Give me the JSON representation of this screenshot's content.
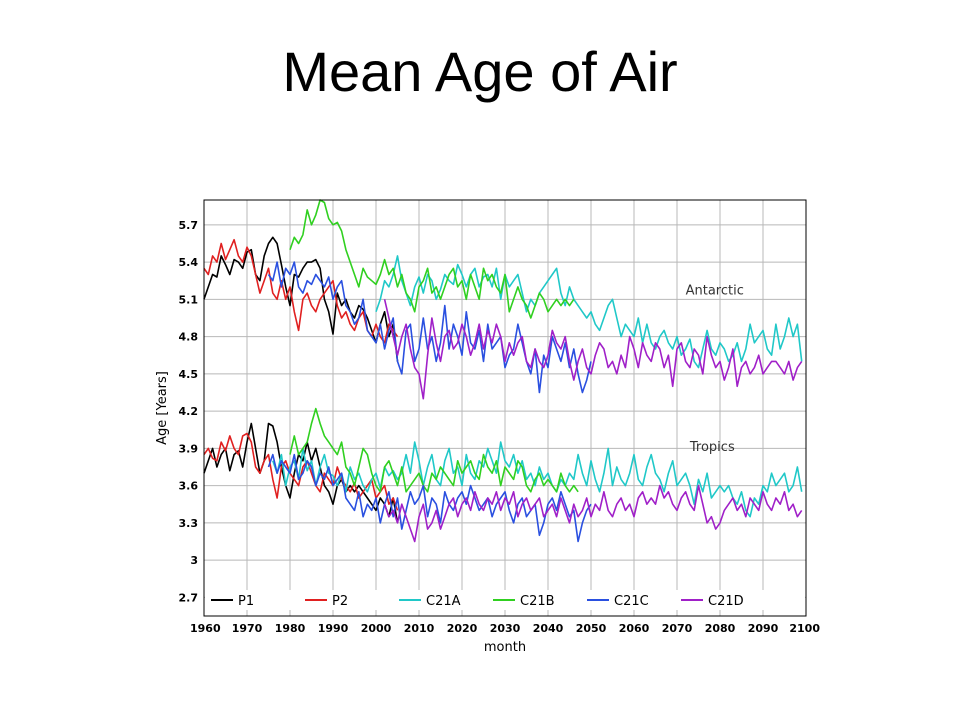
{
  "slide": {
    "title": "Mean Age of Air"
  },
  "chart_data": {
    "type": "line",
    "title": "",
    "xlabel": "month",
    "ylabel": "Age  [Years]",
    "xlim": [
      1960,
      2100
    ],
    "ylim": [
      2.55,
      5.9
    ],
    "x_ticks": [
      "1960",
      "1970",
      "1980",
      "1990",
      "2000",
      "2010",
      "2020",
      "2030",
      "2040",
      "2050",
      "2060",
      "2070",
      "2080",
      "2090",
      "2100"
    ],
    "y_ticks": [
      "2.7",
      "3",
      "3.3",
      "3.6",
      "3.9",
      "4.2",
      "4.5",
      "4.8",
      "5.1",
      "5.4",
      "5.7"
    ],
    "grid": true,
    "legend_position": "bottom",
    "annotations": [
      {
        "text": "Antarctic",
        "x": 2072,
        "y": 5.14
      },
      {
        "text": "Tropics",
        "x": 2073,
        "y": 3.88
      }
    ],
    "series": [
      {
        "name": "P1",
        "color": "#000000",
        "group": "Antarctic",
        "x_start": 1960,
        "x_step": 1,
        "values": [
          5.1,
          5.2,
          5.3,
          5.28,
          5.45,
          5.38,
          5.3,
          5.42,
          5.4,
          5.35,
          5.48,
          5.5,
          5.3,
          5.25,
          5.45,
          5.55,
          5.6,
          5.55,
          5.38,
          5.2,
          5.05,
          5.3,
          5.28,
          5.35,
          5.4,
          5.4,
          5.42,
          5.35,
          5.1,
          5.0,
          4.82,
          5.15,
          5.05,
          5.1,
          5.0,
          4.95,
          5.05,
          5.02,
          4.95,
          4.85,
          4.75,
          4.9,
          5.0,
          4.8,
          4.9,
          4.6
        ]
      },
      {
        "name": "P2",
        "color": "#e02020",
        "group": "Antarctic",
        "x_start": 1960,
        "x_step": 1,
        "values": [
          5.35,
          5.3,
          5.45,
          5.4,
          5.55,
          5.42,
          5.5,
          5.58,
          5.45,
          5.4,
          5.52,
          5.45,
          5.3,
          5.15,
          5.25,
          5.35,
          5.15,
          5.1,
          5.25,
          5.1,
          5.2,
          5.0,
          4.85,
          5.1,
          5.15,
          5.05,
          5.0,
          5.1,
          5.15,
          5.2,
          5.25,
          5.05,
          4.95,
          5.0,
          4.9,
          4.85,
          4.95,
          5.0,
          4.85,
          4.8,
          4.9,
          4.8,
          4.75,
          4.9,
          4.85,
          4.8
        ]
      },
      {
        "name": "C21A",
        "color": "#20c8c8",
        "group": "Antarctic",
        "x_start": 2000,
        "x_step": 1,
        "values": [
          5.0,
          5.1,
          5.25,
          5.2,
          5.3,
          5.45,
          5.25,
          5.15,
          5.05,
          5.2,
          5.28,
          5.15,
          5.3,
          5.25,
          5.1,
          5.18,
          5.3,
          5.25,
          5.22,
          5.38,
          5.3,
          5.2,
          5.3,
          5.35,
          5.2,
          5.28,
          5.3,
          5.2,
          5.35,
          5.1,
          5.3,
          5.2,
          5.25,
          5.3,
          5.15,
          5.0,
          5.1,
          5.05,
          5.15,
          5.2,
          5.25,
          5.3,
          5.35,
          5.15,
          5.05,
          5.2,
          5.1,
          5.05,
          5.0,
          4.95,
          5.0,
          4.9,
          4.85,
          4.95,
          5.05,
          5.1,
          4.95,
          4.8,
          4.9,
          4.85,
          4.8,
          4.95,
          4.75,
          4.9,
          4.75,
          4.7,
          4.8,
          4.85,
          4.75,
          4.7,
          4.8,
          4.65,
          4.7,
          4.78,
          4.6,
          4.55,
          4.7,
          4.85,
          4.7,
          4.65,
          4.75,
          4.7,
          4.6,
          4.65,
          4.75,
          4.6,
          4.7,
          4.9,
          4.75,
          4.8,
          4.85,
          4.7,
          4.65,
          4.9,
          4.7,
          4.8,
          4.95,
          4.8,
          4.9,
          4.6
        ]
      },
      {
        "name": "C21B",
        "color": "#30d020",
        "group": "Antarctic",
        "x_start": 1980,
        "x_step": 1,
        "values": [
          5.5,
          5.6,
          5.55,
          5.62,
          5.82,
          5.7,
          5.78,
          5.9,
          5.88,
          5.75,
          5.7,
          5.72,
          5.65,
          5.5,
          5.4,
          5.3,
          5.2,
          5.35,
          5.28,
          5.25,
          5.22,
          5.3,
          5.42,
          5.3,
          5.35,
          5.2,
          5.3,
          5.15,
          5.1,
          5.0,
          5.2,
          5.25,
          5.35,
          5.15,
          5.2,
          5.1,
          5.2,
          5.3,
          5.35,
          5.2,
          5.25,
          5.1,
          5.3,
          5.2,
          5.1,
          5.35,
          5.25,
          5.3,
          5.2,
          5.15,
          5.3,
          5.0,
          5.1,
          5.2,
          5.1,
          5.05,
          4.95,
          5.05,
          5.15,
          5.1,
          5.0,
          5.05,
          5.1,
          5.05,
          5.1,
          5.05,
          5.1
        ]
      },
      {
        "name": "C21C",
        "color": "#2a50e0",
        "group": "Antarctic",
        "x_start": 1975,
        "x_step": 1,
        "values": [
          5.3,
          5.25,
          5.4,
          5.2,
          5.35,
          5.3,
          5.4,
          5.2,
          5.15,
          5.25,
          5.22,
          5.3,
          5.25,
          5.2,
          5.28,
          5.1,
          5.2,
          5.25,
          5.05,
          5.0,
          4.9,
          4.95,
          5.1,
          4.85,
          4.8,
          4.75,
          4.9,
          4.7,
          4.85,
          4.95,
          4.6,
          4.5,
          4.85,
          4.9,
          4.6,
          4.7,
          4.95,
          4.7,
          4.8,
          4.6,
          4.75,
          5.05,
          4.7,
          4.9,
          4.8,
          4.65,
          5.0,
          4.75,
          4.7,
          4.85,
          4.6,
          4.9,
          4.7,
          4.75,
          4.8,
          4.55,
          4.65,
          4.7,
          4.9,
          4.75,
          4.6,
          4.5,
          4.7,
          4.35,
          4.65,
          4.55,
          4.8,
          4.7,
          4.6,
          4.75,
          4.55,
          4.7,
          4.5,
          4.35,
          4.45,
          4.6
        ]
      },
      {
        "name": "C21D",
        "color": "#a020c8",
        "group": "Antarctic",
        "x_start": 2002,
        "x_step": 1,
        "values": [
          5.1,
          4.95,
          4.8,
          4.65,
          4.8,
          4.9,
          4.7,
          4.55,
          4.5,
          4.3,
          4.65,
          4.95,
          4.75,
          4.6,
          4.8,
          4.85,
          4.7,
          4.75,
          4.9,
          4.8,
          4.65,
          4.75,
          4.9,
          4.7,
          4.85,
          4.75,
          4.9,
          4.8,
          4.6,
          4.75,
          4.65,
          4.75,
          4.8,
          4.6,
          4.55,
          4.7,
          4.6,
          4.55,
          4.65,
          4.85,
          4.75,
          4.7,
          4.8,
          4.6,
          4.45,
          4.6,
          4.7,
          4.55,
          4.5,
          4.65,
          4.75,
          4.7,
          4.55,
          4.6,
          4.5,
          4.65,
          4.55,
          4.8,
          4.7,
          4.55,
          4.75,
          4.65,
          4.6,
          4.75,
          4.7,
          4.55,
          4.65,
          4.4,
          4.7,
          4.75,
          4.6,
          4.55,
          4.7,
          4.65,
          4.5,
          4.8,
          4.65,
          4.55,
          4.6,
          4.45,
          4.55,
          4.7,
          4.4,
          4.55,
          4.6,
          4.5,
          4.55,
          4.65,
          4.5,
          4.55,
          4.6,
          4.6,
          4.55,
          4.5,
          4.6,
          4.45,
          4.55,
          4.6
        ]
      },
      {
        "name": "P1",
        "color": "#000000",
        "group": "Tropics",
        "x_start": 1960,
        "x_step": 1,
        "values": [
          3.7,
          3.8,
          3.9,
          3.75,
          3.85,
          3.9,
          3.72,
          3.85,
          3.88,
          3.75,
          3.95,
          4.1,
          3.9,
          3.7,
          3.8,
          4.1,
          4.08,
          3.95,
          3.75,
          3.6,
          3.5,
          3.7,
          3.85,
          3.8,
          3.95,
          3.8,
          3.9,
          3.75,
          3.6,
          3.55,
          3.45,
          3.6,
          3.65,
          3.55,
          3.6,
          3.55,
          3.6,
          3.55,
          3.5,
          3.45,
          3.4,
          3.5,
          3.45,
          3.35,
          3.5,
          3.3
        ]
      },
      {
        "name": "P2",
        "color": "#e02020",
        "group": "Tropics",
        "x_start": 1960,
        "x_step": 1,
        "values": [
          3.85,
          3.9,
          3.82,
          3.8,
          3.95,
          3.88,
          4.0,
          3.9,
          3.85,
          4.0,
          4.02,
          3.95,
          3.75,
          3.7,
          3.8,
          3.85,
          3.65,
          3.5,
          3.75,
          3.8,
          3.7,
          3.65,
          3.6,
          3.75,
          3.8,
          3.7,
          3.6,
          3.55,
          3.7,
          3.65,
          3.6,
          3.75,
          3.65,
          3.6,
          3.55,
          3.62,
          3.5,
          3.55,
          3.6,
          3.65,
          3.5,
          3.55,
          3.6,
          3.45,
          3.5,
          3.4
        ]
      },
      {
        "name": "C21A",
        "color": "#20c8c8",
        "group": "Tropics",
        "x_start": 1976,
        "x_step": 1,
        "values": [
          3.8,
          3.7,
          3.85,
          3.6,
          3.75,
          3.8,
          3.65,
          3.9,
          3.72,
          3.8,
          3.6,
          3.75,
          3.85,
          3.7,
          3.68,
          3.6,
          3.7,
          3.55,
          3.75,
          3.65,
          3.7,
          3.6,
          3.55,
          3.65,
          3.7,
          3.58,
          3.75,
          3.68,
          3.72,
          3.65,
          3.7,
          3.85,
          3.7,
          3.95,
          3.8,
          3.6,
          3.75,
          3.85,
          3.65,
          3.6,
          3.8,
          3.9,
          3.7,
          3.75,
          3.6,
          3.85,
          3.7,
          3.65,
          3.8,
          3.75,
          3.9,
          3.8,
          3.7,
          3.95,
          3.8,
          3.75,
          3.85,
          3.7,
          3.8,
          3.65,
          3.7,
          3.6,
          3.75,
          3.65,
          3.7,
          3.6,
          3.55,
          3.65,
          3.6,
          3.7,
          3.65,
          3.85,
          3.7,
          3.6,
          3.8,
          3.65,
          3.55,
          3.7,
          3.9,
          3.6,
          3.75,
          3.65,
          3.6,
          3.7,
          3.85,
          3.65,
          3.6,
          3.75,
          3.85,
          3.7,
          3.65,
          3.55,
          3.7,
          3.8,
          3.6,
          3.65,
          3.7,
          3.6,
          3.45,
          3.65,
          3.55,
          3.7,
          3.5,
          3.55,
          3.6,
          3.55,
          3.6,
          3.5,
          3.45,
          3.55,
          3.4,
          3.35,
          3.5,
          3.45,
          3.6,
          3.55,
          3.7,
          3.6,
          3.65,
          3.7,
          3.55,
          3.6,
          3.75,
          3.55
        ]
      },
      {
        "name": "C21B",
        "color": "#30d020",
        "group": "Tropics",
        "x_start": 1980,
        "x_step": 1,
        "values": [
          3.85,
          4.0,
          3.85,
          3.9,
          3.95,
          4.1,
          4.22,
          4.1,
          4.0,
          3.95,
          3.9,
          3.85,
          3.95,
          3.75,
          3.7,
          3.6,
          3.75,
          3.9,
          3.85,
          3.7,
          3.6,
          3.55,
          3.75,
          3.8,
          3.7,
          3.6,
          3.75,
          3.55,
          3.6,
          3.65,
          3.7,
          3.6,
          3.55,
          3.7,
          3.65,
          3.75,
          3.7,
          3.65,
          3.6,
          3.8,
          3.7,
          3.75,
          3.8,
          3.7,
          3.65,
          3.85,
          3.75,
          3.7,
          3.8,
          3.6,
          3.75,
          3.7,
          3.65,
          3.8,
          3.75,
          3.6,
          3.55,
          3.65,
          3.7,
          3.6,
          3.65,
          3.6,
          3.55,
          3.7,
          3.6,
          3.55,
          3.6,
          3.55
        ]
      },
      {
        "name": "C21C",
        "color": "#2a50e0",
        "group": "Tropics",
        "x_start": 1975,
        "x_step": 1,
        "values": [
          3.75,
          3.85,
          3.7,
          3.8,
          3.75,
          3.7,
          3.85,
          3.65,
          3.7,
          3.8,
          3.75,
          3.6,
          3.7,
          3.65,
          3.75,
          3.6,
          3.65,
          3.7,
          3.5,
          3.45,
          3.4,
          3.55,
          3.35,
          3.45,
          3.4,
          3.5,
          3.3,
          3.45,
          3.55,
          3.35,
          3.5,
          3.25,
          3.4,
          3.55,
          3.45,
          3.5,
          3.6,
          3.35,
          3.5,
          3.45,
          3.3,
          3.55,
          3.45,
          3.4,
          3.5,
          3.55,
          3.45,
          3.6,
          3.5,
          3.4,
          3.45,
          3.5,
          3.35,
          3.45,
          3.5,
          3.55,
          3.4,
          3.3,
          3.45,
          3.5,
          3.35,
          3.4,
          3.45,
          3.2,
          3.3,
          3.45,
          3.5,
          3.4,
          3.55,
          3.45,
          3.35,
          3.4,
          3.15,
          3.3,
          3.4,
          3.45
        ]
      },
      {
        "name": "C21D",
        "color": "#a020c8",
        "group": "Tropics",
        "x_start": 2002,
        "x_step": 1,
        "values": [
          3.45,
          3.35,
          3.4,
          3.3,
          3.45,
          3.35,
          3.25,
          3.15,
          3.35,
          3.45,
          3.25,
          3.3,
          3.4,
          3.25,
          3.35,
          3.45,
          3.5,
          3.35,
          3.45,
          3.5,
          3.4,
          3.55,
          3.45,
          3.4,
          3.5,
          3.45,
          3.55,
          3.4,
          3.5,
          3.45,
          3.55,
          3.35,
          3.45,
          3.5,
          3.4,
          3.45,
          3.5,
          3.35,
          3.4,
          3.45,
          3.35,
          3.5,
          3.4,
          3.3,
          3.45,
          3.35,
          3.4,
          3.5,
          3.35,
          3.45,
          3.4,
          3.55,
          3.4,
          3.35,
          3.45,
          3.5,
          3.4,
          3.45,
          3.35,
          3.5,
          3.55,
          3.45,
          3.5,
          3.45,
          3.6,
          3.5,
          3.55,
          3.45,
          3.4,
          3.5,
          3.55,
          3.45,
          3.4,
          3.6,
          3.45,
          3.3,
          3.35,
          3.25,
          3.3,
          3.4,
          3.45,
          3.5,
          3.4,
          3.45,
          3.35,
          3.5,
          3.45,
          3.4,
          3.55,
          3.45,
          3.4,
          3.5,
          3.45,
          3.55,
          3.4,
          3.45,
          3.35,
          3.4
        ]
      }
    ],
    "legend": [
      {
        "name": "P1",
        "color": "#000000"
      },
      {
        "name": "P2",
        "color": "#e02020"
      },
      {
        "name": "C21A",
        "color": "#20c8c8"
      },
      {
        "name": "C21B",
        "color": "#30d020"
      },
      {
        "name": "C21C",
        "color": "#2a50e0"
      },
      {
        "name": "C21D",
        "color": "#a020c8"
      }
    ]
  }
}
